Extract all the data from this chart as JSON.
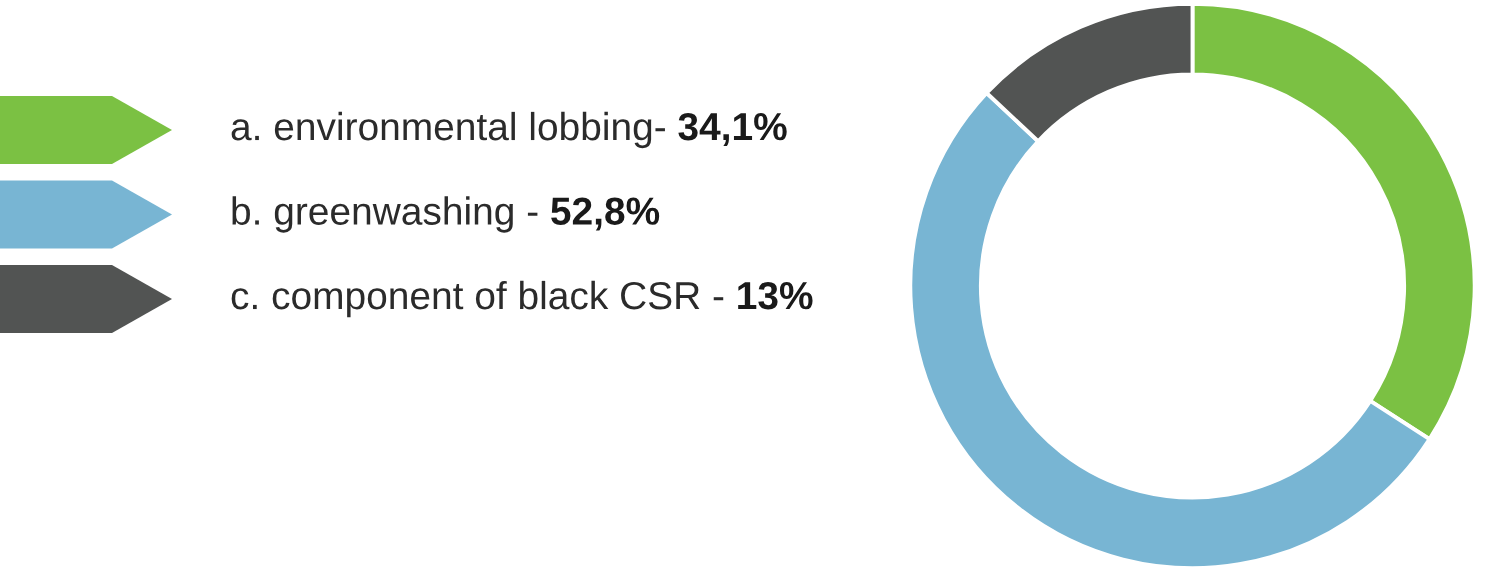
{
  "chart_data": {
    "type": "donut",
    "categories": [
      "a. environmental lobbing-",
      "b. greenwashing -",
      "c. component of black CSR -"
    ],
    "values": [
      34.1,
      52.8,
      13
    ],
    "value_labels": [
      "34,1%",
      "52,8%",
      "13%"
    ],
    "colors": [
      "#7bc143",
      "#78b5d3",
      "#525453"
    ],
    "legend": "left"
  }
}
